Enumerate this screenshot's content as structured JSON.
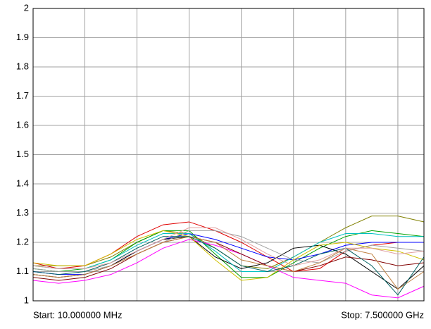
{
  "chart_data": {
    "type": "line",
    "start_label": "Start: 10.000000 MHz",
    "stop_label": "Stop: 7.500000 GHz",
    "x": [
      0.01,
      0.5,
      1,
      1.5,
      2,
      2.5,
      3,
      3.5,
      4,
      4.5,
      5,
      5.5,
      6,
      6.5,
      7,
      7.5
    ],
    "xlim": [
      0.01,
      7.5
    ],
    "x_grid_lines": [
      1,
      2,
      3,
      4,
      5,
      6,
      7
    ],
    "ylim": [
      1,
      2
    ],
    "yticks": [
      1,
      1.1,
      1.2,
      1.3,
      1.4,
      1.5,
      1.6,
      1.7,
      1.8,
      1.9,
      2
    ],
    "grid": true,
    "series": [
      {
        "color": "#808000",
        "values": [
          1.12,
          1.12,
          1.12,
          1.15,
          1.2,
          1.24,
          1.23,
          1.18,
          1.12,
          1.11,
          1.15,
          1.2,
          1.25,
          1.29,
          1.29,
          1.27
        ]
      },
      {
        "color": "#e00000",
        "values": [
          1.13,
          1.11,
          1.12,
          1.16,
          1.22,
          1.26,
          1.27,
          1.24,
          1.2,
          1.15,
          1.1,
          1.11,
          1.17,
          1.19,
          1.2,
          1.2
        ]
      },
      {
        "color": "#00a000",
        "values": [
          1.11,
          1.1,
          1.11,
          1.14,
          1.2,
          1.24,
          1.24,
          1.16,
          1.08,
          1.08,
          1.13,
          1.18,
          1.22,
          1.24,
          1.23,
          1.22
        ]
      },
      {
        "color": "#0000ff",
        "values": [
          1.1,
          1.09,
          1.09,
          1.12,
          1.17,
          1.21,
          1.23,
          1.21,
          1.18,
          1.15,
          1.14,
          1.16,
          1.19,
          1.2,
          1.2,
          1.2
        ]
      },
      {
        "color": "#000000",
        "values": [
          1.09,
          1.08,
          1.09,
          1.12,
          1.17,
          1.21,
          1.22,
          1.15,
          1.11,
          1.13,
          1.18,
          1.19,
          1.16,
          1.1,
          1.04,
          1.12
        ]
      },
      {
        "color": "#ff00ff",
        "values": [
          1.07,
          1.06,
          1.07,
          1.09,
          1.13,
          1.18,
          1.21,
          1.19,
          1.16,
          1.12,
          1.08,
          1.07,
          1.06,
          1.02,
          1.01,
          1.05
        ]
      },
      {
        "color": "#00c0c0",
        "values": [
          1.12,
          1.11,
          1.11,
          1.14,
          1.19,
          1.23,
          1.23,
          1.17,
          1.1,
          1.1,
          1.15,
          1.2,
          1.23,
          1.23,
          1.22,
          1.22
        ]
      },
      {
        "color": "#a0a0a0",
        "values": [
          1.11,
          1.1,
          1.1,
          1.12,
          1.16,
          1.2,
          1.24,
          1.24,
          1.22,
          1.18,
          1.14,
          1.13,
          1.17,
          1.19,
          1.18,
          1.17
        ]
      },
      {
        "color": "#d0c000",
        "values": [
          1.13,
          1.12,
          1.12,
          1.16,
          1.21,
          1.24,
          1.22,
          1.14,
          1.07,
          1.08,
          1.14,
          1.19,
          1.2,
          1.18,
          1.17,
          1.14
        ]
      },
      {
        "color": "#800000",
        "values": [
          1.08,
          1.07,
          1.08,
          1.11,
          1.16,
          1.2,
          1.22,
          1.2,
          1.16,
          1.12,
          1.1,
          1.12,
          1.15,
          1.14,
          1.12,
          1.13
        ]
      },
      {
        "color": "#c08040",
        "values": [
          1.09,
          1.08,
          1.09,
          1.12,
          1.16,
          1.2,
          1.22,
          1.2,
          1.14,
          1.12,
          1.1,
          1.13,
          1.18,
          1.16,
          1.04,
          1.1
        ]
      },
      {
        "color": "#006060",
        "values": [
          1.1,
          1.09,
          1.1,
          1.13,
          1.18,
          1.22,
          1.22,
          1.18,
          1.12,
          1.1,
          1.12,
          1.16,
          1.18,
          1.12,
          1.02,
          1.15
        ]
      },
      {
        "color": "#e0a0a0",
        "values": [
          1.12,
          1.11,
          1.11,
          1.13,
          1.17,
          1.21,
          1.25,
          1.25,
          1.21,
          1.16,
          1.12,
          1.14,
          1.18,
          1.18,
          1.16,
          1.17
        ]
      }
    ]
  }
}
